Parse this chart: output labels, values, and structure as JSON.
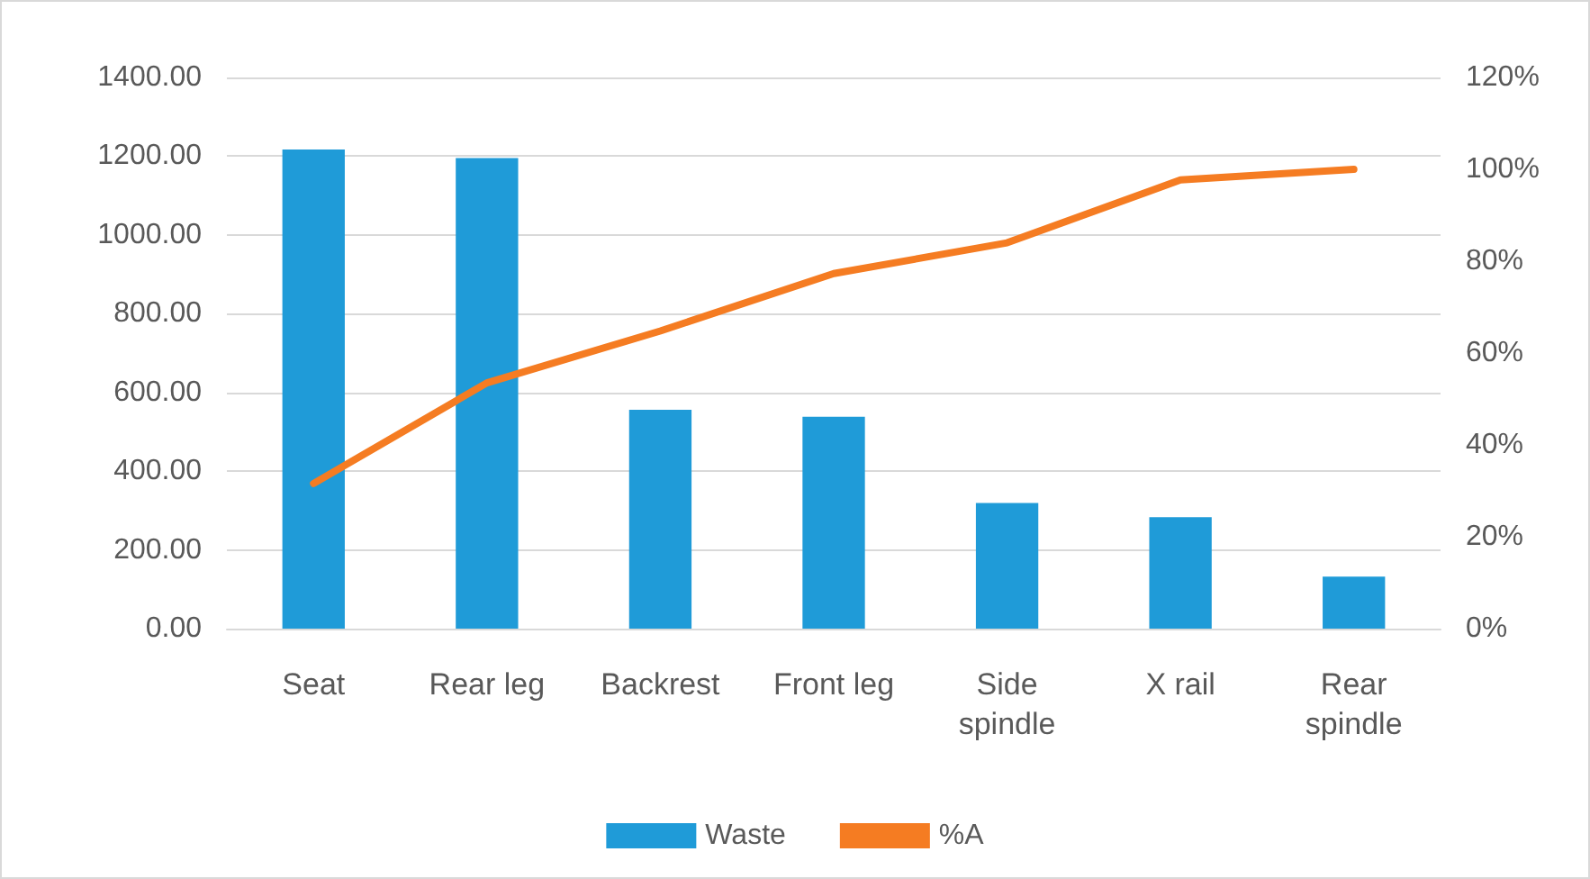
{
  "chart_data": {
    "type": "bar",
    "categories": [
      "Seat",
      "Rear leg",
      "Backrest",
      "Front leg",
      "Side\nspindle",
      "X rail",
      "Rear\nspindle"
    ],
    "series": [
      {
        "name": "Waste",
        "color": "#1f9bd8",
        "values": [
          1217,
          1195,
          556,
          538,
          319,
          283,
          132
        ]
      },
      {
        "name": "%A",
        "type": "line",
        "axis": "y2",
        "color": "#f57c22",
        "values": [
          31.6,
          53.5,
          64.8,
          77.3,
          84,
          97.7,
          100
        ]
      }
    ],
    "ylim": [
      0,
      1400
    ],
    "yticks": [
      {
        "value": 0,
        "label": "0.00"
      },
      {
        "value": 200,
        "label": "200.00"
      },
      {
        "value": 400,
        "label": "400.00"
      },
      {
        "value": 600,
        "label": "600.00"
      },
      {
        "value": 800,
        "label": "800.00"
      },
      {
        "value": 1000,
        "label": "1000.00"
      },
      {
        "value": 1200,
        "label": "1200.00"
      },
      {
        "value": 1400,
        "label": "1400.00"
      }
    ],
    "y2lim": [
      0,
      120
    ],
    "y2ticks": [
      {
        "value": 0,
        "label": "0%"
      },
      {
        "value": 20,
        "label": "20%"
      },
      {
        "value": 40,
        "label": "40%"
      },
      {
        "value": 60,
        "label": "60%"
      },
      {
        "value": 80,
        "label": "80%"
      },
      {
        "value": 100,
        "label": "100%"
      },
      {
        "value": 120,
        "label": "120%"
      }
    ],
    "grid": "y",
    "legend": "bottom",
    "marker": "none",
    "line_style": "solid"
  }
}
